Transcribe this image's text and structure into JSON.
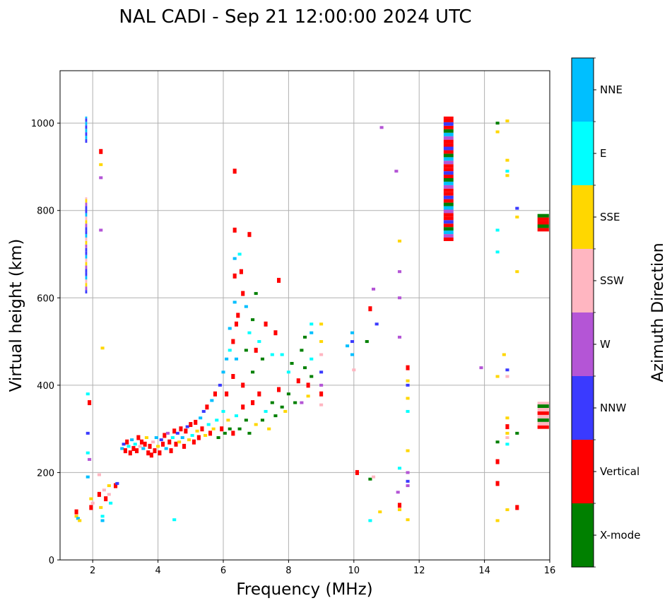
{
  "chart_data": {
    "type": "scatter",
    "title": "NAL CADI - Sep 21 12:00:00 2024 UTC",
    "xlabel": "Frequency (MHz)",
    "ylabel": "Virtual height (km)",
    "xlim": [
      1,
      16
    ],
    "ylim": [
      0,
      1120
    ],
    "xticks": [
      2,
      4,
      6,
      8,
      10,
      12,
      14,
      16
    ],
    "yticks": [
      0,
      200,
      400,
      600,
      800,
      1000
    ],
    "grid": true,
    "colorbar": {
      "label": "Azimuth Direction",
      "categories": [
        "X-mode",
        "Vertical",
        "NNW",
        "W",
        "SSW",
        "SSE",
        "E",
        "NNE"
      ],
      "colors": [
        "#008000",
        "#ff0000",
        "#3a3aff",
        "#b455d6",
        "#ffb6c1",
        "#ffd700",
        "#00ffff",
        "#00bfff"
      ]
    },
    "points_format": "[frequency_MHz, height_km, category_index]",
    "points": [
      [
        1.5,
        100,
        5
      ],
      [
        1.5,
        110,
        1
      ],
      [
        1.55,
        95,
        7
      ],
      [
        1.6,
        90,
        5
      ],
      [
        1.85,
        190,
        7
      ],
      [
        1.85,
        380,
        6
      ],
      [
        1.9,
        360,
        1
      ],
      [
        1.95,
        140,
        5
      ],
      [
        1.95,
        120,
        1
      ],
      [
        2.0,
        130,
        4
      ],
      [
        2.2,
        150,
        1
      ],
      [
        2.25,
        120,
        5
      ],
      [
        2.3,
        90,
        7
      ],
      [
        2.3,
        100,
        6
      ],
      [
        2.35,
        160,
        4
      ],
      [
        2.4,
        140,
        1
      ],
      [
        2.5,
        170,
        5
      ],
      [
        2.5,
        150,
        4
      ],
      [
        2.55,
        130,
        6
      ],
      [
        2.7,
        170,
        1
      ],
      [
        2.75,
        175,
        2
      ],
      [
        2.3,
        485,
        5
      ],
      [
        2.25,
        755,
        3
      ],
      [
        2.25,
        905,
        5
      ],
      [
        2.25,
        875,
        3
      ],
      [
        2.25,
        935,
        1
      ],
      [
        1.85,
        290,
        2
      ],
      [
        1.85,
        245,
        6
      ],
      [
        1.9,
        230,
        3
      ],
      [
        2.2,
        195,
        4
      ],
      [
        4.5,
        92,
        6
      ],
      [
        2.9,
        255,
        7
      ],
      [
        2.95,
        265,
        2
      ],
      [
        3.0,
        250,
        1
      ],
      [
        3.05,
        270,
        1
      ],
      [
        3.1,
        260,
        6
      ],
      [
        3.15,
        245,
        1
      ],
      [
        3.2,
        275,
        7
      ],
      [
        3.25,
        255,
        1
      ],
      [
        3.3,
        265,
        6
      ],
      [
        3.35,
        250,
        1
      ],
      [
        3.4,
        280,
        1
      ],
      [
        3.45,
        260,
        4
      ],
      [
        3.5,
        270,
        1
      ],
      [
        3.55,
        255,
        7
      ],
      [
        3.6,
        265,
        1
      ],
      [
        3.65,
        280,
        5
      ],
      [
        3.7,
        245,
        1
      ],
      [
        3.75,
        260,
        1
      ],
      [
        3.8,
        240,
        1
      ],
      [
        3.85,
        270,
        4
      ],
      [
        3.9,
        250,
        1
      ],
      [
        3.95,
        280,
        7
      ],
      [
        4.0,
        260,
        5
      ],
      [
        4.05,
        245,
        1
      ],
      [
        4.1,
        275,
        2
      ],
      [
        4.15,
        265,
        1
      ],
      [
        4.2,
        285,
        1
      ],
      [
        4.25,
        255,
        7
      ],
      [
        4.3,
        290,
        3
      ],
      [
        4.35,
        270,
        1
      ],
      [
        4.4,
        250,
        1
      ],
      [
        4.45,
        280,
        6
      ],
      [
        4.5,
        295,
        1
      ],
      [
        4.55,
        265,
        1
      ],
      [
        4.6,
        290,
        2
      ],
      [
        4.65,
        270,
        5
      ],
      [
        4.7,
        300,
        1
      ],
      [
        4.75,
        280,
        7
      ],
      [
        4.8,
        260,
        1
      ],
      [
        4.85,
        295,
        1
      ],
      [
        4.9,
        305,
        2
      ],
      [
        4.95,
        275,
        5
      ],
      [
        5.0,
        310,
        1
      ],
      [
        5.05,
        285,
        6
      ],
      [
        5.1,
        270,
        1
      ],
      [
        5.15,
        315,
        1
      ],
      [
        5.2,
        295,
        5
      ],
      [
        5.25,
        280,
        1
      ],
      [
        5.3,
        325,
        7
      ],
      [
        5.35,
        300,
        1
      ],
      [
        5.4,
        340,
        2
      ],
      [
        5.45,
        285,
        5
      ],
      [
        5.5,
        350,
        1
      ],
      [
        5.55,
        310,
        6
      ],
      [
        5.6,
        290,
        1
      ],
      [
        5.65,
        365,
        7
      ],
      [
        5.7,
        300,
        5
      ],
      [
        5.75,
        380,
        1
      ],
      [
        5.8,
        320,
        6
      ],
      [
        5.85,
        280,
        0
      ],
      [
        5.9,
        400,
        2
      ],
      [
        5.95,
        300,
        1
      ],
      [
        6.0,
        430,
        7
      ],
      [
        6.0,
        340,
        6
      ],
      [
        6.05,
        290,
        0
      ],
      [
        6.1,
        460,
        7
      ],
      [
        6.1,
        380,
        1
      ],
      [
        6.15,
        320,
        5
      ],
      [
        6.2,
        480,
        6
      ],
      [
        6.2,
        530,
        7
      ],
      [
        6.3,
        420,
        1
      ],
      [
        6.3,
        500,
        1
      ],
      [
        6.35,
        590,
        7
      ],
      [
        6.35,
        650,
        1
      ],
      [
        6.35,
        690,
        7
      ],
      [
        6.35,
        755,
        1
      ],
      [
        6.35,
        890,
        1
      ],
      [
        6.4,
        540,
        1
      ],
      [
        6.4,
        460,
        7
      ],
      [
        6.45,
        560,
        1
      ],
      [
        6.5,
        700,
        6
      ],
      [
        6.55,
        660,
        1
      ],
      [
        6.6,
        610,
        1
      ],
      [
        6.6,
        400,
        1
      ],
      [
        6.7,
        480,
        0
      ],
      [
        6.7,
        580,
        7
      ],
      [
        6.8,
        520,
        6
      ],
      [
        6.8,
        745,
        1
      ],
      [
        6.9,
        550,
        0
      ],
      [
        6.9,
        430,
        0
      ],
      [
        7.0,
        610,
        0
      ],
      [
        7.0,
        480,
        1
      ],
      [
        7.1,
        500,
        6
      ],
      [
        7.2,
        460,
        0
      ],
      [
        7.3,
        540,
        1
      ],
      [
        7.5,
        470,
        6
      ],
      [
        7.6,
        520,
        1
      ],
      [
        7.7,
        640,
        1
      ],
      [
        7.8,
        470,
        6
      ],
      [
        6.2,
        300,
        0
      ],
      [
        6.3,
        290,
        1
      ],
      [
        6.4,
        330,
        6
      ],
      [
        6.5,
        300,
        0
      ],
      [
        6.6,
        350,
        1
      ],
      [
        6.7,
        320,
        0
      ],
      [
        6.8,
        290,
        0
      ],
      [
        6.9,
        360,
        1
      ],
      [
        7.0,
        310,
        5
      ],
      [
        7.1,
        380,
        1
      ],
      [
        7.2,
        320,
        0
      ],
      [
        7.3,
        340,
        6
      ],
      [
        7.4,
        300,
        5
      ],
      [
        7.5,
        360,
        0
      ],
      [
        7.6,
        330,
        0
      ],
      [
        7.7,
        390,
        1
      ],
      [
        7.8,
        350,
        0
      ],
      [
        7.9,
        340,
        5
      ],
      [
        8.0,
        380,
        0
      ],
      [
        8.0,
        430,
        6
      ],
      [
        8.1,
        450,
        0
      ],
      [
        8.2,
        360,
        0
      ],
      [
        8.3,
        410,
        1
      ],
      [
        8.4,
        480,
        0
      ],
      [
        8.4,
        360,
        3
      ],
      [
        8.5,
        440,
        0
      ],
      [
        8.5,
        510,
        0
      ],
      [
        8.6,
        400,
        1
      ],
      [
        8.6,
        375,
        5
      ],
      [
        8.7,
        460,
        6
      ],
      [
        8.7,
        540,
        6
      ],
      [
        8.7,
        520,
        7
      ],
      [
        8.7,
        420,
        0
      ],
      [
        9.0,
        540,
        5
      ],
      [
        9.0,
        500,
        5
      ],
      [
        9.0,
        470,
        4
      ],
      [
        9.0,
        430,
        2
      ],
      [
        9.0,
        400,
        3
      ],
      [
        9.0,
        380,
        1
      ],
      [
        9.0,
        355,
        4
      ],
      [
        9.8,
        490,
        7
      ],
      [
        9.95,
        520,
        7
      ],
      [
        9.95,
        470,
        7
      ],
      [
        9.95,
        500,
        2
      ],
      [
        10.0,
        435,
        4
      ],
      [
        10.4,
        500,
        0
      ],
      [
        10.5,
        575,
        1
      ],
      [
        10.6,
        620,
        3
      ],
      [
        10.7,
        540,
        2
      ],
      [
        10.1,
        200,
        1
      ],
      [
        10.5,
        185,
        0
      ],
      [
        10.6,
        190,
        4
      ],
      [
        10.5,
        90,
        6
      ],
      [
        10.8,
        110,
        5
      ],
      [
        10.85,
        990,
        3
      ],
      [
        11.3,
        890,
        3
      ],
      [
        11.4,
        730,
        5
      ],
      [
        11.4,
        660,
        3
      ],
      [
        11.4,
        600,
        3
      ],
      [
        11.4,
        510,
        3
      ],
      [
        11.4,
        210,
        6
      ],
      [
        11.35,
        155,
        3
      ],
      [
        11.4,
        125,
        1
      ],
      [
        11.4,
        115,
        5
      ],
      [
        11.65,
        440,
        1
      ],
      [
        11.65,
        410,
        5
      ],
      [
        11.65,
        400,
        2
      ],
      [
        11.65,
        370,
        5
      ],
      [
        11.65,
        340,
        6
      ],
      [
        11.65,
        250,
        5
      ],
      [
        11.65,
        200,
        3
      ],
      [
        11.65,
        180,
        2
      ],
      [
        11.65,
        170,
        3
      ],
      [
        11.65,
        92,
        5
      ],
      [
        13.9,
        440,
        3
      ],
      [
        14.4,
        1000,
        0
      ],
      [
        14.4,
        980,
        5
      ],
      [
        14.4,
        755,
        6
      ],
      [
        14.4,
        705,
        6
      ],
      [
        14.4,
        420,
        5
      ],
      [
        14.4,
        270,
        0
      ],
      [
        14.4,
        225,
        1
      ],
      [
        14.4,
        175,
        1
      ],
      [
        14.4,
        90,
        5
      ],
      [
        14.7,
        1005,
        5
      ],
      [
        14.7,
        915,
        5
      ],
      [
        14.7,
        890,
        6
      ],
      [
        14.7,
        880,
        5
      ],
      [
        14.6,
        470,
        5
      ],
      [
        14.7,
        435,
        2
      ],
      [
        14.7,
        420,
        4
      ],
      [
        14.7,
        325,
        5
      ],
      [
        14.7,
        305,
        1
      ],
      [
        14.7,
        290,
        5
      ],
      [
        14.7,
        280,
        4
      ],
      [
        14.7,
        265,
        6
      ],
      [
        14.7,
        115,
        5
      ],
      [
        15.0,
        120,
        1
      ],
      [
        15.0,
        290,
        0
      ],
      [
        15.0,
        805,
        2
      ],
      [
        15.0,
        785,
        5
      ],
      [
        15.0,
        660,
        5
      ]
    ],
    "columns_format": "[frequency_MHz, height_from_km, height_to_km, width_MHz, category_cycle]",
    "columns": [
      [
        1.8,
        610,
        830,
        0.06,
        [
          2,
          3,
          5,
          4,
          7,
          2
        ]
      ],
      [
        1.8,
        955,
        1015,
        0.06,
        [
          2,
          7
        ]
      ],
      [
        12.9,
        730,
        1015,
        0.3,
        [
          1,
          3,
          7,
          0,
          1,
          2,
          1
        ]
      ],
      [
        15.8,
        300,
        362,
        0.35,
        [
          1,
          4,
          0,
          4
        ]
      ],
      [
        15.8,
        752,
        792,
        0.35,
        [
          1,
          0,
          1
        ]
      ]
    ]
  }
}
